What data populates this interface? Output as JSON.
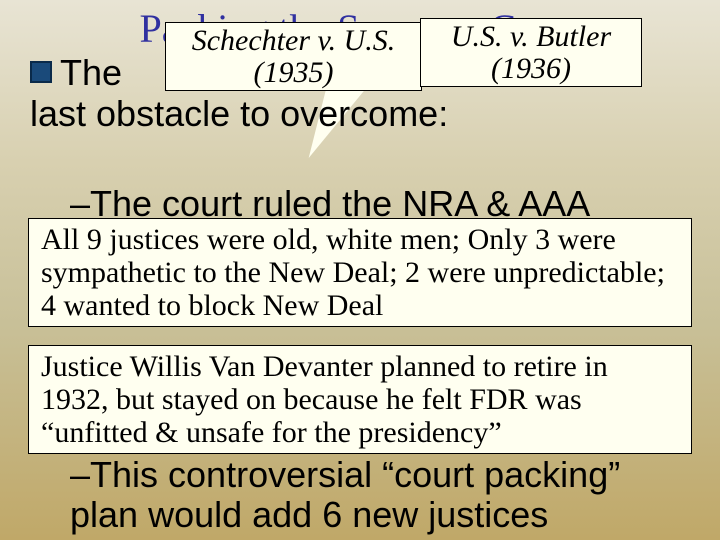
{
  "title": "Packing the Supreme Court",
  "callout_left": {
    "line1": "Schechter v. U.S.",
    "line2": "(1935)"
  },
  "callout_right": {
    "line1": "U.S. v. Butler",
    "line2": "(1936)"
  },
  "main_bullet_pre": "The ",
  "main_bullet_post": "last obstacle to overcome:",
  "underlay_text": "–The court ruled the NRA & AAA",
  "box1": "All 9 justices were old, white men; Only 3 were sympathetic to the New Deal; 2 were unpredictable; 4 wanted to block New Deal",
  "box2": "Justice Willis Van Devanter planned to retire in 1932, but stayed on because he felt FDR was “unfitted & unsafe for the presidency”",
  "bottom": "–This controversial “court packing” plan would add 6 new justices",
  "colors": {
    "title_color": "#3030a0",
    "bullet_fill": "#1a4a7a",
    "callout_bg": "#fffff0",
    "bg_top": "#e8e4d4",
    "bg_bottom": "#c0a868"
  },
  "fonts": {
    "title_size": 40,
    "body_size": 36,
    "box_size": 30
  }
}
